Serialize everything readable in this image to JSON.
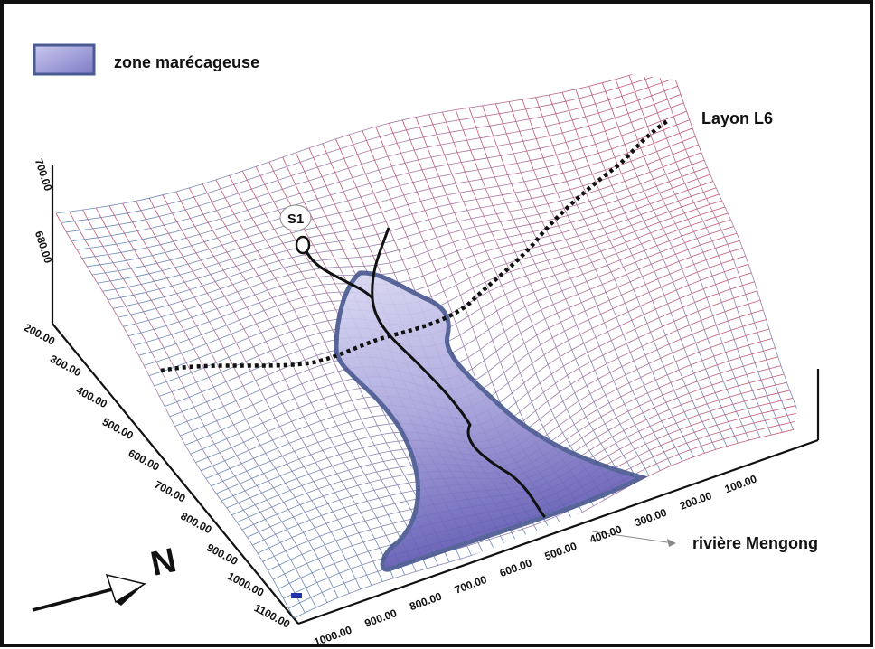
{
  "legend": {
    "label": "zone marécageuse",
    "swatch_color": "#9c9ad6"
  },
  "labels": {
    "trail": "Layon L6",
    "river": "rivière Mengong",
    "spring": "S1",
    "north": "N"
  },
  "axes": {
    "vertical_ticks": [
      "700.00",
      "680.00"
    ],
    "left_ticks": [
      "200.00",
      "300.00",
      "400.00",
      "500.00",
      "600.00",
      "700.00",
      "800.00",
      "900.00",
      "1000.00",
      "1100.00"
    ],
    "front_ticks": [
      "1000.00",
      "900.00",
      "800.00",
      "700.00",
      "600.00",
      "500.00",
      "400.00",
      "300.00",
      "200.00",
      "100.00"
    ]
  },
  "colors": {
    "frame": "#111111",
    "mesh_upper": "#c04060",
    "mesh_lower": "#5a7fb0",
    "swamp_fill": "#5b54b0",
    "swamp_outline": "#4a5a92",
    "trail": "#111111",
    "stream": "#111111"
  }
}
